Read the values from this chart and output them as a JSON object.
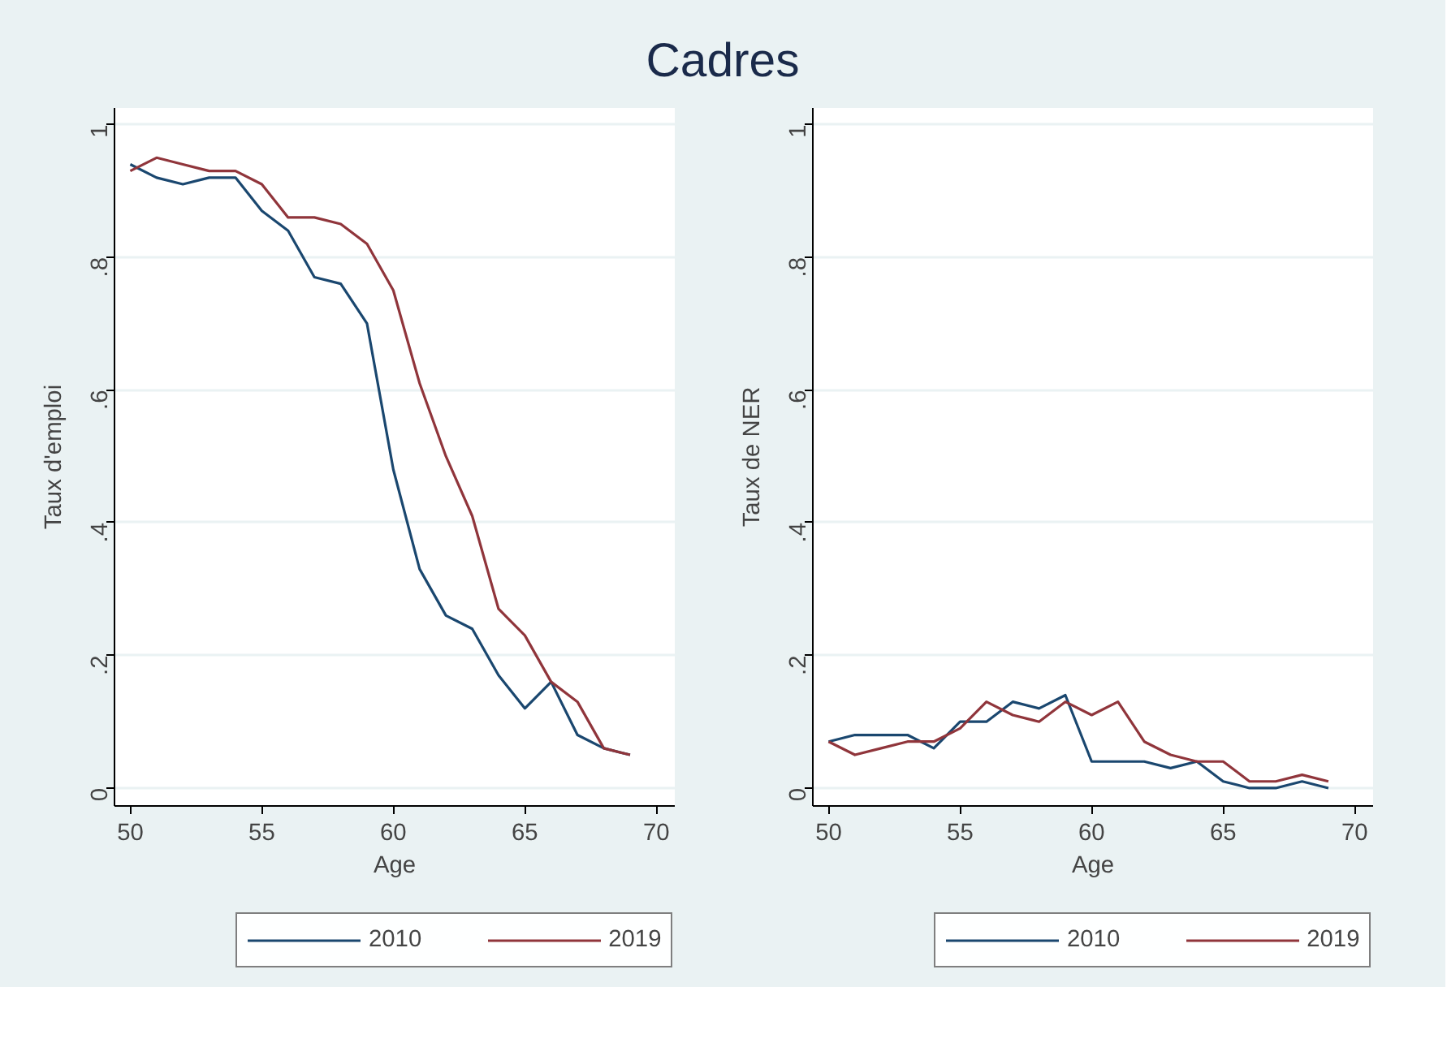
{
  "chart_data": [
    {
      "type": "line",
      "title": "Cadres",
      "xlabel": "Age",
      "ylabel": "Taux d'emploi",
      "x": [
        50,
        51,
        52,
        53,
        54,
        55,
        56,
        57,
        58,
        59,
        60,
        61,
        62,
        63,
        64,
        65,
        66,
        67,
        68,
        69
      ],
      "series": [
        {
          "name": "2010",
          "color": "#1a476f",
          "values": [
            0.94,
            0.92,
            0.91,
            0.92,
            0.92,
            0.87,
            0.84,
            0.77,
            0.76,
            0.7,
            0.48,
            0.33,
            0.26,
            0.24,
            0.17,
            0.12,
            0.16,
            0.08,
            0.06,
            0.05
          ]
        },
        {
          "name": "2019",
          "color": "#90353b",
          "values": [
            0.93,
            0.95,
            0.94,
            0.93,
            0.93,
            0.91,
            0.86,
            0.86,
            0.85,
            0.82,
            0.75,
            0.61,
            0.5,
            0.41,
            0.27,
            0.23,
            0.16,
            0.13,
            0.06,
            0.05
          ]
        }
      ],
      "xlim": [
        49.4,
        70.7
      ],
      "ylim": [
        -0.027,
        1.025
      ],
      "xticks": [
        50,
        55,
        60,
        65,
        70
      ],
      "yticks": [
        {
          "value": 0,
          "label": "0"
        },
        {
          "value": 0.2,
          "label": ".2"
        },
        {
          "value": 0.4,
          "label": ".4"
        },
        {
          "value": 0.6,
          "label": ".6"
        },
        {
          "value": 0.8,
          "label": ".8"
        },
        {
          "value": 1,
          "label": "1"
        }
      ],
      "grid": "y",
      "legend": "bottom",
      "marker": "none",
      "line_style": "solid"
    },
    {
      "type": "line",
      "xlabel": "Age",
      "ylabel": "Taux de NER",
      "x": [
        50,
        51,
        52,
        53,
        54,
        55,
        56,
        57,
        58,
        59,
        60,
        61,
        62,
        63,
        64,
        65,
        66,
        67,
        68,
        69
      ],
      "series": [
        {
          "name": "2010",
          "color": "#1a476f",
          "values": [
            0.07,
            0.08,
            0.08,
            0.08,
            0.06,
            0.1,
            0.1,
            0.13,
            0.12,
            0.14,
            0.04,
            0.04,
            0.04,
            0.03,
            0.04,
            0.01,
            0.0,
            0.0,
            0.01,
            0.0
          ]
        },
        {
          "name": "2019",
          "color": "#90353b",
          "values": [
            0.07,
            0.05,
            0.06,
            0.07,
            0.07,
            0.09,
            0.13,
            0.11,
            0.1,
            0.13,
            0.11,
            0.13,
            0.07,
            0.05,
            0.04,
            0.04,
            0.01,
            0.01,
            0.02,
            0.01
          ]
        }
      ],
      "xlim": [
        49.4,
        70.7
      ],
      "ylim": [
        -0.027,
        1.025
      ],
      "xticks": [
        50,
        55,
        60,
        65,
        70
      ],
      "yticks": [
        {
          "value": 0,
          "label": "0"
        },
        {
          "value": 0.2,
          "label": ".2"
        },
        {
          "value": 0.4,
          "label": ".4"
        },
        {
          "value": 0.6,
          "label": ".6"
        },
        {
          "value": 0.8,
          "label": ".8"
        },
        {
          "value": 1,
          "label": "1"
        }
      ],
      "grid": "y",
      "legend": "bottom",
      "marker": "none",
      "line_style": "solid"
    }
  ]
}
